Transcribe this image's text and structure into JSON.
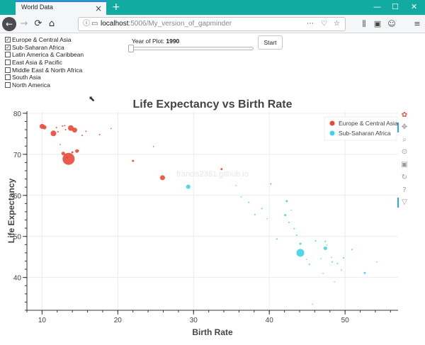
{
  "browser": {
    "tab_title": "World Data",
    "tab_close": "×",
    "new_tab": "+",
    "win_min": "—",
    "win_max": "☐",
    "win_close": "✕",
    "nav": {
      "back": "←",
      "forward": "→",
      "reload": "⟳",
      "home": "⌂"
    },
    "url_host": "localhost",
    "url_path": ":5006/My_version_of_gapminder",
    "url_icons": [
      "ⓘ",
      "▭"
    ],
    "right_icons": [
      "⋯",
      "♡",
      "☆",
      "⫼",
      "▣",
      "☺",
      "≡"
    ]
  },
  "controls": {
    "regions": [
      {
        "label": "Europe & Central Asia",
        "checked": true
      },
      {
        "label": "Sub-Saharan Africa",
        "checked": true
      },
      {
        "label": "Latin America & Caribbean",
        "checked": false
      },
      {
        "label": "East Asia & Pacific",
        "checked": false
      },
      {
        "label": "Middle East & North Africa",
        "checked": false
      },
      {
        "label": "South Asia",
        "checked": false
      },
      {
        "label": "North America",
        "checked": false
      }
    ],
    "slider_label": "Year of Plot:",
    "slider_value": "1990",
    "slider_level": 0.0,
    "start_button": "Start"
  },
  "toolbar": {
    "tools": [
      "bokeh-logo-icon",
      "pan-icon",
      "zoom-icon",
      "wheel-zoom-icon",
      "save-icon",
      "reset-icon",
      "help-icon",
      "hover-icon"
    ]
  },
  "chart_data": {
    "type": "scatter",
    "title": "Life Expectancy vs Birth Rate",
    "xlabel": "Birth Rate",
    "ylabel": "Life Expectancy",
    "xlim": [
      8,
      57
    ],
    "ylim": [
      32,
      80.5
    ],
    "xticks": [
      10,
      20,
      30,
      40,
      50
    ],
    "yticks": [
      40,
      50,
      60,
      70,
      80
    ],
    "grid": true,
    "legend_position": "top-right",
    "watermark": "francis2381.github.io",
    "series": [
      {
        "name": "Europe & Central Asia",
        "color": "#e8493a",
        "points": [
          [
            10.0,
            76.8,
            7
          ],
          [
            10.3,
            76.6,
            6
          ],
          [
            12.7,
            76.9,
            2
          ],
          [
            13.0,
            77.0,
            2
          ],
          [
            11.5,
            75.1,
            8
          ],
          [
            11.9,
            76.5,
            2
          ],
          [
            12.1,
            75.5,
            2
          ],
          [
            13.1,
            76.0,
            2
          ],
          [
            13.8,
            76.4,
            8
          ],
          [
            14.3,
            75.9,
            7
          ],
          [
            15.3,
            74.6,
            2
          ],
          [
            15.8,
            75.6,
            2
          ],
          [
            17.6,
            74.8,
            2
          ],
          [
            19.1,
            76.3,
            1
          ],
          [
            12.4,
            72.4,
            1
          ],
          [
            12.8,
            70.2,
            5
          ],
          [
            13.3,
            69.2,
            3
          ],
          [
            13.5,
            68.9,
            17
          ],
          [
            14.0,
            70.5,
            3
          ],
          [
            14.6,
            70.8,
            5
          ],
          [
            14.8,
            70.9,
            2
          ],
          [
            22.0,
            68.4,
            3
          ],
          [
            24.7,
            71.9,
            1
          ],
          [
            25.9,
            64.3,
            7
          ],
          [
            33.7,
            66.4,
            3
          ],
          [
            40.2,
            62.8,
            1
          ]
        ]
      },
      {
        "name": "Sub-Saharan Africa",
        "color": "#3fd3e8",
        "points": [
          [
            29.3,
            62.1,
            6
          ],
          [
            35.6,
            62.4,
            1
          ],
          [
            36.3,
            59.6,
            1
          ],
          [
            37.3,
            58.3,
            2
          ],
          [
            38.1,
            55.3,
            2
          ],
          [
            39.0,
            56.8,
            2
          ],
          [
            39.7,
            54.3,
            1
          ],
          [
            42.1,
            55.2,
            3
          ],
          [
            42.3,
            58.6,
            3
          ],
          [
            42.6,
            53.4,
            2
          ],
          [
            42.9,
            56.4,
            1
          ],
          [
            43.3,
            51.9,
            2
          ],
          [
            43.6,
            50.3,
            2
          ],
          [
            44.1,
            48.2,
            3
          ],
          [
            44.1,
            46.0,
            11
          ],
          [
            44.9,
            44.4,
            1
          ],
          [
            45.3,
            43.2,
            2
          ],
          [
            46.1,
            48.9,
            2
          ],
          [
            46.8,
            44.6,
            1
          ],
          [
            47.4,
            48.8,
            2
          ],
          [
            47.6,
            47.9,
            1
          ],
          [
            48.3,
            43.8,
            2
          ],
          [
            49.0,
            43.4,
            2
          ],
          [
            49.5,
            41.8,
            1
          ],
          [
            47.4,
            47.1,
            5
          ],
          [
            48.2,
            44.9,
            1
          ],
          [
            48.6,
            38.9,
            1
          ],
          [
            49.8,
            44.8,
            2
          ],
          [
            50.9,
            46.8,
            2
          ],
          [
            52.6,
            41.1,
            3
          ],
          [
            54.2,
            43.8,
            1
          ],
          [
            45.7,
            33.5,
            1
          ],
          [
            47.1,
            41.0,
            1
          ],
          [
            41.0,
            49.4,
            2
          ]
        ]
      }
    ]
  }
}
